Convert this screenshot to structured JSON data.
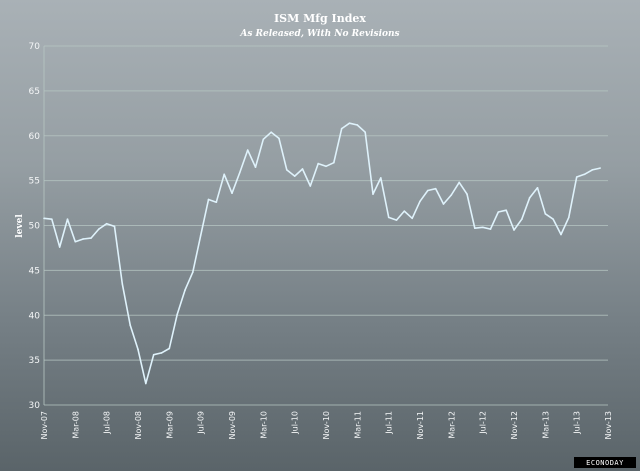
{
  "chart_data": {
    "type": "line",
    "title": "ISM Mfg Index",
    "subtitle": "As Released, With No Revisions",
    "ylabel": "level",
    "ylim": [
      30,
      70
    ],
    "yticks": [
      "30",
      "35",
      "40",
      "45",
      "50",
      "55",
      "60",
      "65",
      "70"
    ],
    "grid": true,
    "x": [
      "Nov-07",
      "Dec-07",
      "Jan-08",
      "Feb-08",
      "Mar-08",
      "Apr-08",
      "May-08",
      "Jun-08",
      "Jul-08",
      "Aug-08",
      "Sep-08",
      "Oct-08",
      "Nov-08",
      "Dec-08",
      "Jan-09",
      "Feb-09",
      "Mar-09",
      "Apr-09",
      "May-09",
      "Jun-09",
      "Jul-09",
      "Aug-09",
      "Sep-09",
      "Oct-09",
      "Nov-09",
      "Dec-09",
      "Jan-10",
      "Feb-10",
      "Mar-10",
      "Apr-10",
      "May-10",
      "Jun-10",
      "Jul-10",
      "Aug-10",
      "Sep-10",
      "Oct-10",
      "Nov-10",
      "Dec-10",
      "Jan-11",
      "Feb-11",
      "Mar-11",
      "Apr-11",
      "May-11",
      "Jun-11",
      "Jul-11",
      "Aug-11",
      "Sep-11",
      "Oct-11",
      "Nov-11",
      "Dec-11",
      "Jan-12",
      "Feb-12",
      "Mar-12",
      "Apr-12",
      "May-12",
      "Jun-12",
      "Jul-12",
      "Aug-12",
      "Sep-12",
      "Oct-12",
      "Nov-12",
      "Dec-12",
      "Jan-13",
      "Feb-13",
      "Mar-13",
      "Apr-13",
      "May-13",
      "Jun-13",
      "Jul-13",
      "Aug-13",
      "Sep-13",
      "Oct-13",
      "Nov-13"
    ],
    "xticks": [
      "Nov-07",
      "Mar-08",
      "Jul-08",
      "Nov-08",
      "Mar-09",
      "Jul-09",
      "Nov-09",
      "Mar-10",
      "Jul-10",
      "Nov-10",
      "Mar-11",
      "Jul-11",
      "Nov-11",
      "Mar-12",
      "Jul-12",
      "Nov-12",
      "Mar-13",
      "Jul-13",
      "Nov-13"
    ],
    "series": [
      {
        "values": [
          50.8,
          50.7,
          47.6,
          50.7,
          48.2,
          48.5,
          48.6,
          49.6,
          50.2,
          49.9,
          43.5,
          38.9,
          36.2,
          32.4,
          35.6,
          35.8,
          36.3,
          40.1,
          42.8,
          44.8,
          48.9,
          52.9,
          52.6,
          55.7,
          53.6,
          55.9,
          58.4,
          56.5,
          59.6,
          60.4,
          59.7,
          56.2,
          55.5,
          56.3,
          54.4,
          56.9,
          56.6,
          57.0,
          60.8,
          61.4,
          61.2,
          60.4,
          53.5,
          55.3,
          50.9,
          50.6,
          51.6,
          50.8,
          52.7,
          53.9,
          54.1,
          52.4,
          53.4,
          54.8,
          53.5,
          49.7,
          49.8,
          49.6,
          51.5,
          51.7,
          49.5,
          50.7,
          53.1,
          54.2,
          51.3,
          50.7,
          49.0,
          50.9,
          55.4,
          55.7,
          56.2,
          56.4,
          null
        ]
      }
    ],
    "colors": {
      "line": "#dff2fb",
      "grid": "#b7c7c3"
    }
  },
  "logo": "ECONODAY"
}
